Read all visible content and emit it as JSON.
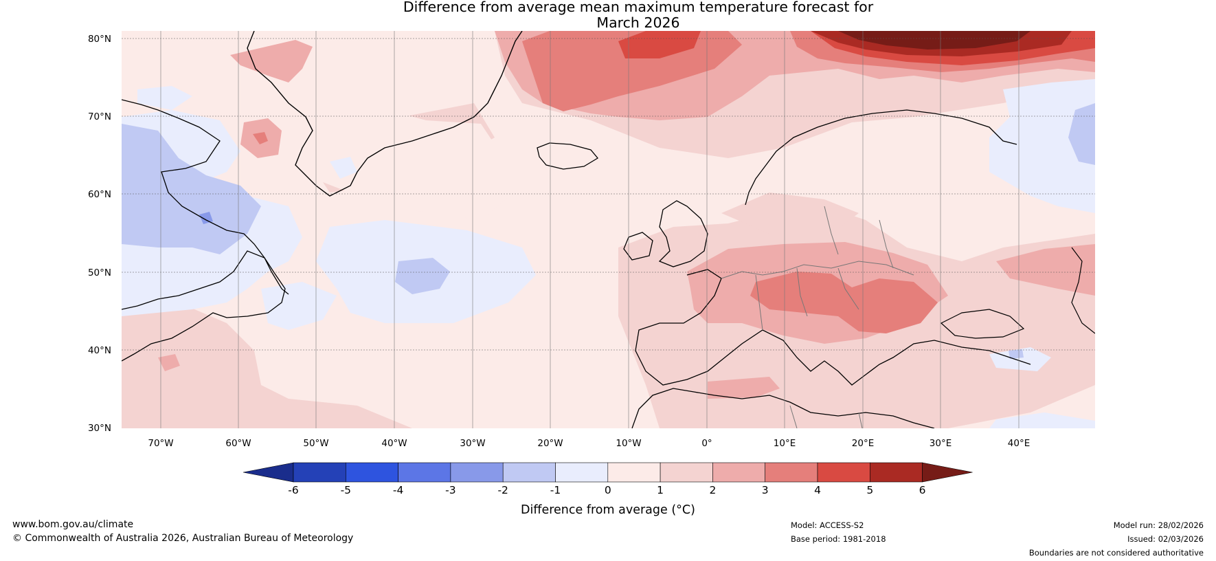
{
  "title_line1": "Difference from average mean maximum temperature forecast for",
  "title_line2": "March 2026",
  "map": {
    "lat_labels": [
      "80°N",
      "70°N",
      "60°N",
      "50°N",
      "40°N",
      "30°N"
    ],
    "lon_labels": [
      "70°W",
      "60°W",
      "50°W",
      "40°W",
      "30°W",
      "20°W",
      "10°W",
      "0°",
      "10°E",
      "20°E",
      "30°E",
      "40°E"
    ],
    "lat_range": [
      30,
      81
    ],
    "lon_range": [
      -75,
      50
    ]
  },
  "colorbar": {
    "label": "Difference from average (°C)",
    "ticks": [
      "-6",
      "-5",
      "-4",
      "-3",
      "-2",
      "-1",
      "0",
      "1",
      "2",
      "3",
      "4",
      "5",
      "6"
    ],
    "colors": [
      "#1a2d8c",
      "#2441b7",
      "#2e54df",
      "#5c76e6",
      "#8899e9",
      "#c0c9f3",
      "#e9edfd",
      "#fcebe8",
      "#f4d3d1",
      "#eeacab",
      "#e57f7b",
      "#d94a42",
      "#aa2a23",
      "#761c17"
    ]
  },
  "footer": {
    "url": "www.bom.gov.au/climate",
    "copyright": "© Commonwealth of Australia 2026, Australian Bureau of Meteorology",
    "model": "Model: ACCESS-S2",
    "base_period": "Base period: 1981-2018",
    "model_run": "Model run: 28/02/2026",
    "issued": "Issued: 02/03/2026",
    "disclaimer": "Boundaries are not considered authoritative"
  }
}
